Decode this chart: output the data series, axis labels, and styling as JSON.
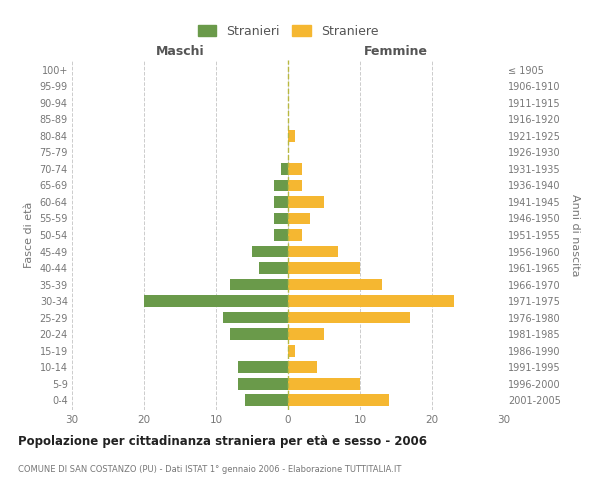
{
  "age_groups": [
    "0-4",
    "5-9",
    "10-14",
    "15-19",
    "20-24",
    "25-29",
    "30-34",
    "35-39",
    "40-44",
    "45-49",
    "50-54",
    "55-59",
    "60-64",
    "65-69",
    "70-74",
    "75-79",
    "80-84",
    "85-89",
    "90-94",
    "95-99",
    "100+"
  ],
  "birth_years": [
    "2001-2005",
    "1996-2000",
    "1991-1995",
    "1986-1990",
    "1981-1985",
    "1976-1980",
    "1971-1975",
    "1966-1970",
    "1961-1965",
    "1956-1960",
    "1951-1955",
    "1946-1950",
    "1941-1945",
    "1936-1940",
    "1931-1935",
    "1926-1930",
    "1921-1925",
    "1916-1920",
    "1911-1915",
    "1906-1910",
    "≤ 1905"
  ],
  "stranieri": [
    6,
    7,
    7,
    0,
    8,
    9,
    20,
    8,
    4,
    5,
    2,
    2,
    2,
    2,
    1,
    0,
    0,
    0,
    0,
    0,
    0
  ],
  "straniere": [
    14,
    10,
    4,
    1,
    5,
    17,
    23,
    13,
    10,
    7,
    2,
    3,
    5,
    2,
    2,
    0,
    1,
    0,
    0,
    0,
    0
  ],
  "color_stranieri": "#6a9a4a",
  "color_straniere": "#f5b731",
  "title": "Popolazione per cittadinanza straniera per età e sesso - 2006",
  "subtitle": "COMUNE DI SAN COSTANZO (PU) - Dati ISTAT 1° gennaio 2006 - Elaborazione TUTTITALIA.IT",
  "xlabel_left": "Maschi",
  "xlabel_right": "Femmine",
  "ylabel_left": "Fasce di età",
  "ylabel_right": "Anni di nascita",
  "xlim": 30,
  "legend_stranieri": "Stranieri",
  "legend_straniere": "Straniere",
  "background_color": "#ffffff",
  "grid_color": "#cccccc"
}
